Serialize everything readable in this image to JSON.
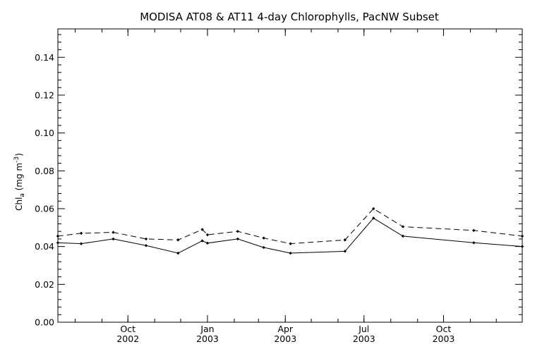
{
  "chart_data": {
    "type": "line",
    "title": "MODISA AT08 & AT11 4-day Chlorophylls, PacNW Subset",
    "ylabel_prefix": "Chl",
    "ylabel_sub": "a",
    "ylabel_units": " (mg m",
    "ylabel_sup": "-3",
    "ylabel_close": ")",
    "xlim": [
      "2002-07-12",
      "2003-12-31"
    ],
    "ylim": [
      0.0,
      0.155
    ],
    "y_major_ticks": [
      0.0,
      0.02,
      0.04,
      0.06,
      0.08,
      0.1,
      0.12,
      0.14
    ],
    "y_tick_labels": [
      "0.00",
      "0.02",
      "0.04",
      "0.06",
      "0.08",
      "0.10",
      "0.12",
      "0.14"
    ],
    "x_major_ticks": [
      {
        "date": "2002-10-01",
        "month": "Oct",
        "year": "2002"
      },
      {
        "date": "2003-01-01",
        "month": "Jan",
        "year": "2003"
      },
      {
        "date": "2003-04-01",
        "month": "Apr",
        "year": "2003"
      },
      {
        "date": "2003-07-01",
        "month": "Jul",
        "year": "2003"
      },
      {
        "date": "2003-10-01",
        "month": "Oct",
        "year": "2003"
      }
    ],
    "series": [
      {
        "style": "solid",
        "points": [
          {
            "x": "2002-07-12",
            "y": 0.042
          },
          {
            "x": "2002-08-08",
            "y": 0.0415
          },
          {
            "x": "2002-09-14",
            "y": 0.044
          },
          {
            "x": "2002-10-22",
            "y": 0.0405
          },
          {
            "x": "2002-11-28",
            "y": 0.0365
          },
          {
            "x": "2002-12-26",
            "y": 0.043
          },
          {
            "x": "2003-01-01",
            "y": 0.0418
          },
          {
            "x": "2003-02-05",
            "y": 0.044
          },
          {
            "x": "2003-03-07",
            "y": 0.0395
          },
          {
            "x": "2003-04-07",
            "y": 0.0365
          },
          {
            "x": "2003-06-09",
            "y": 0.0375
          },
          {
            "x": "2003-07-12",
            "y": 0.055
          },
          {
            "x": "2003-08-15",
            "y": 0.0455
          },
          {
            "x": "2003-11-05",
            "y": 0.042
          },
          {
            "x": "2003-12-31",
            "y": 0.04
          }
        ]
      },
      {
        "style": "dashed",
        "points": [
          {
            "x": "2002-07-12",
            "y": 0.0455
          },
          {
            "x": "2002-08-08",
            "y": 0.047
          },
          {
            "x": "2002-09-14",
            "y": 0.0475
          },
          {
            "x": "2002-10-22",
            "y": 0.044
          },
          {
            "x": "2002-11-28",
            "y": 0.0435
          },
          {
            "x": "2002-12-26",
            "y": 0.049
          },
          {
            "x": "2003-01-01",
            "y": 0.0462
          },
          {
            "x": "2003-02-05",
            "y": 0.048
          },
          {
            "x": "2003-03-07",
            "y": 0.0445
          },
          {
            "x": "2003-04-07",
            "y": 0.0415
          },
          {
            "x": "2003-06-09",
            "y": 0.0435
          },
          {
            "x": "2003-07-12",
            "y": 0.06
          },
          {
            "x": "2003-08-15",
            "y": 0.0505
          },
          {
            "x": "2003-11-05",
            "y": 0.0485
          },
          {
            "x": "2003-12-31",
            "y": 0.0455
          }
        ]
      }
    ],
    "grid": false,
    "legend": "none"
  }
}
